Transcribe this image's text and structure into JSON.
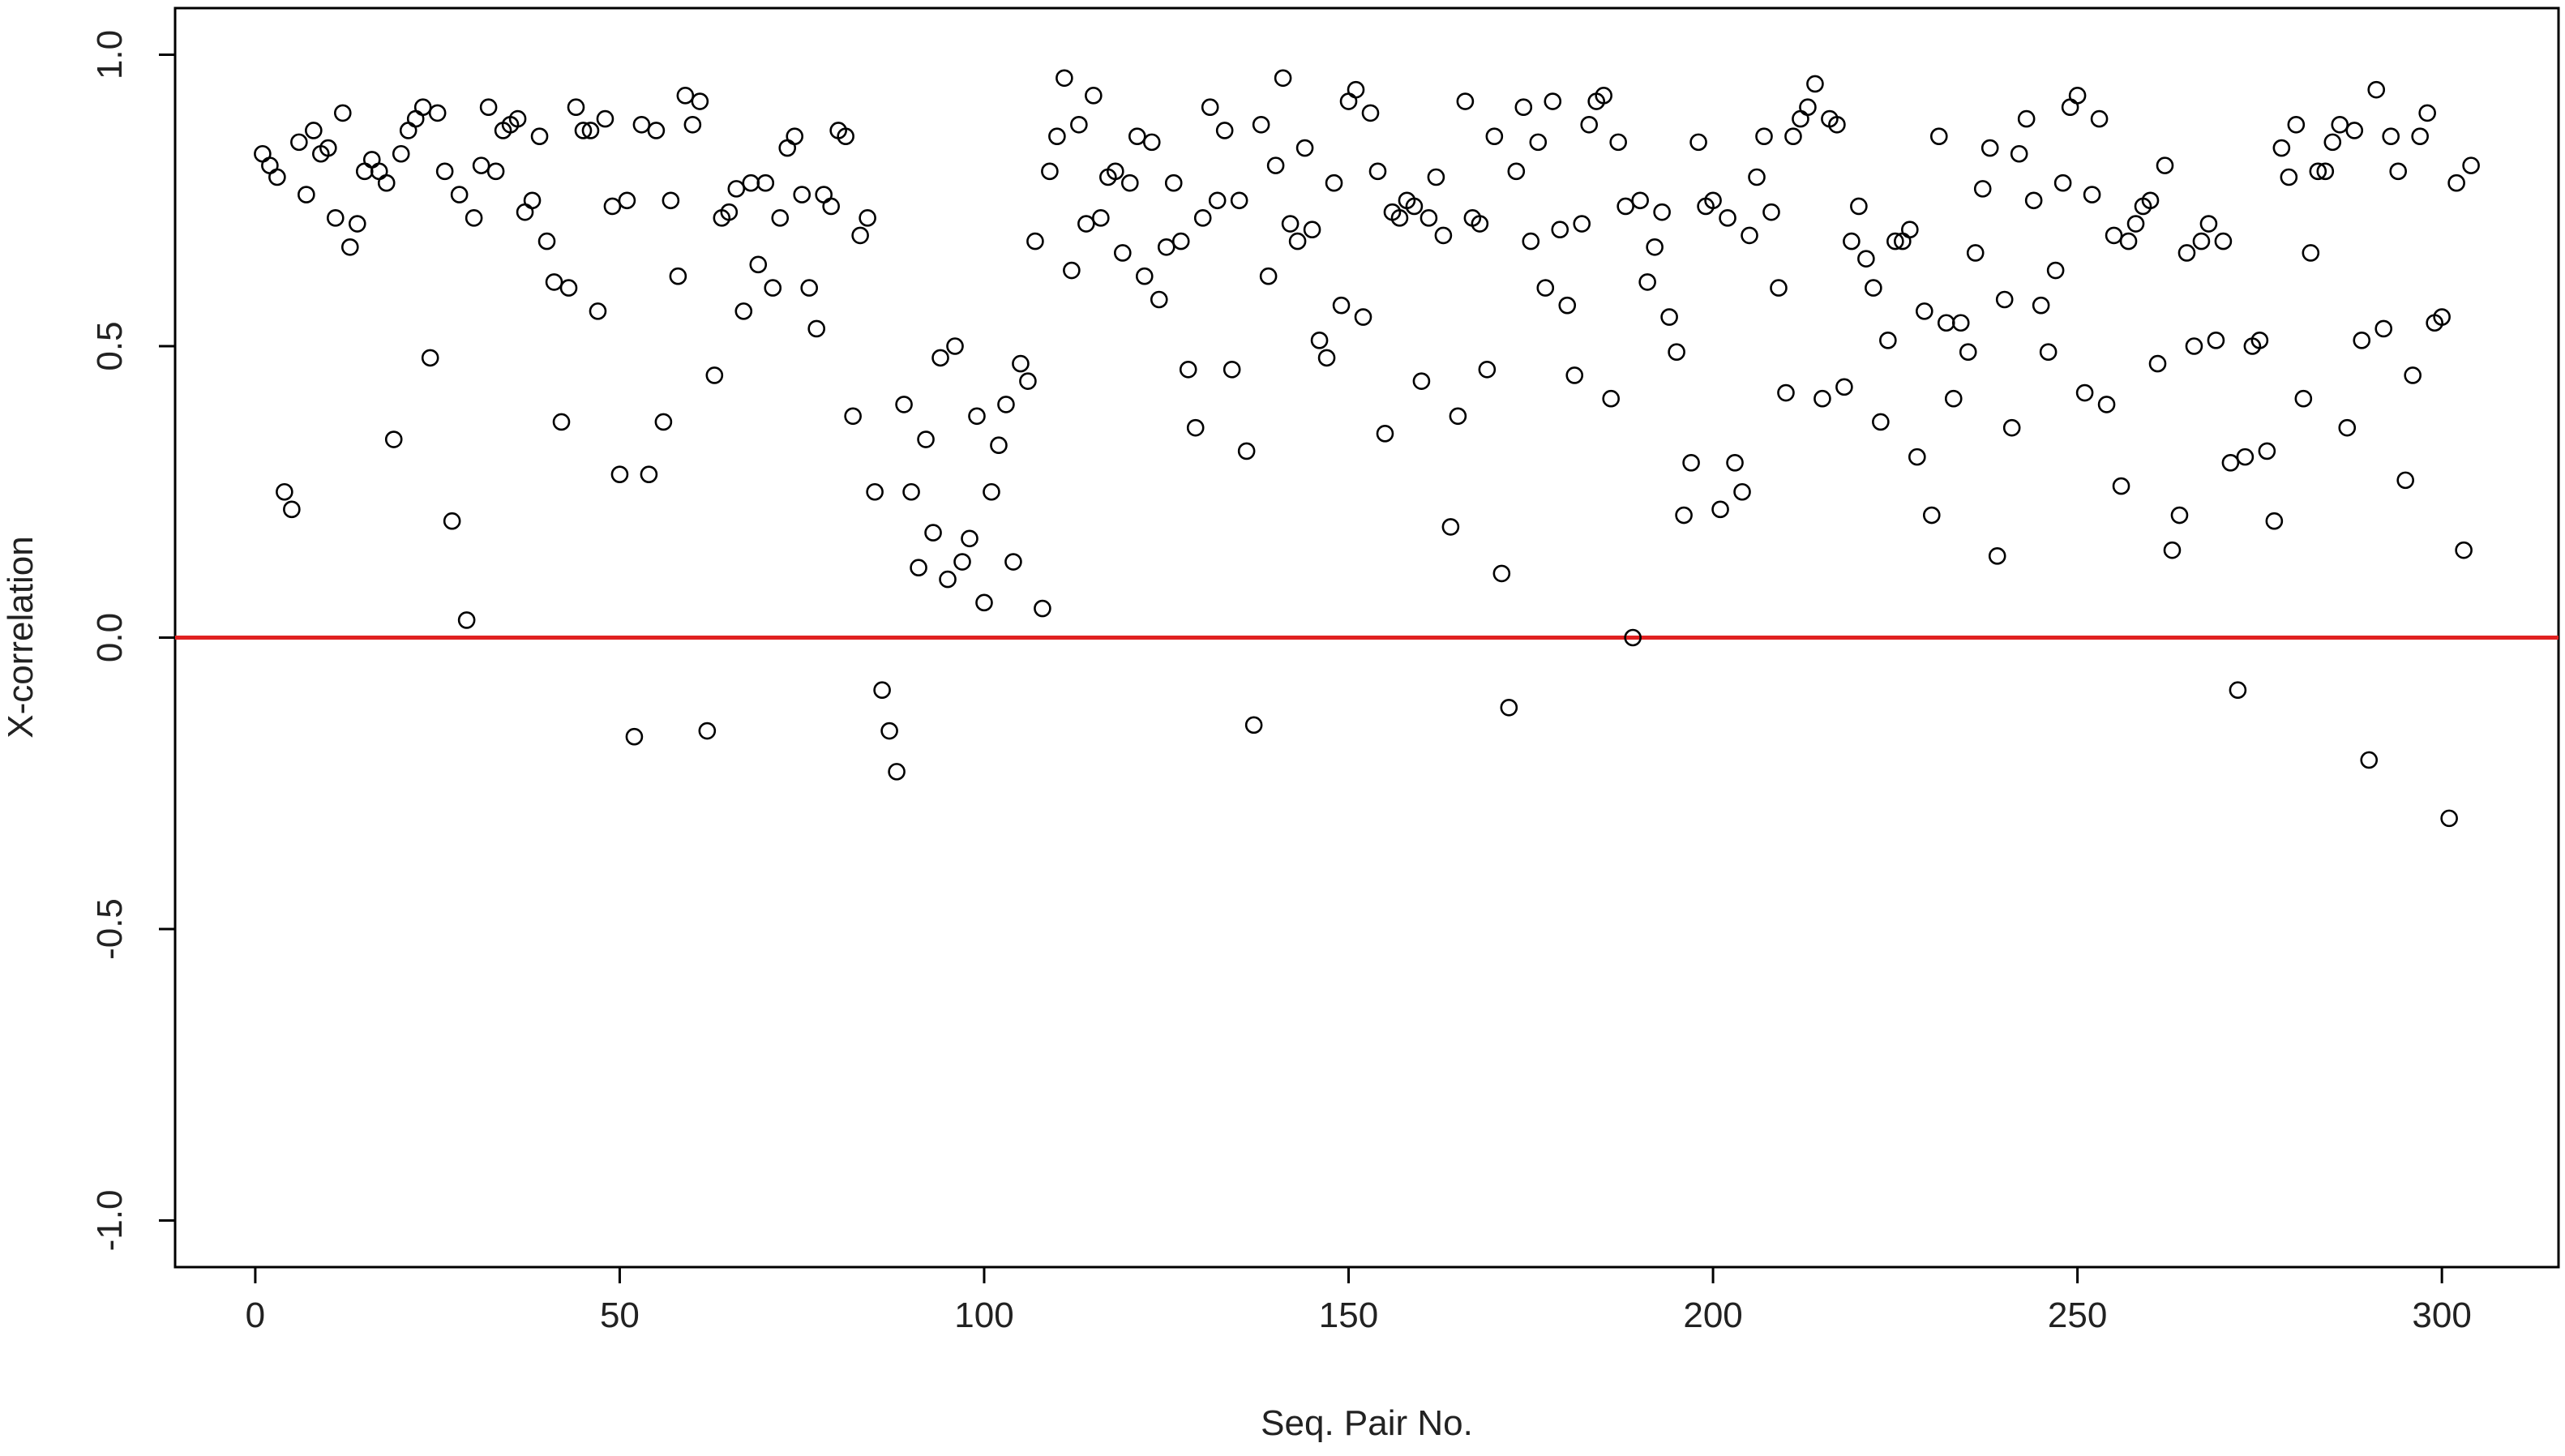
{
  "chart_data": {
    "type": "scatter",
    "title": "",
    "xlabel": "Seq. Pair No.",
    "ylabel": "X-correlation",
    "xlim": [
      -11,
      316
    ],
    "ylim": [
      -1.08,
      1.08
    ],
    "x_ticks": [
      0,
      50,
      100,
      150,
      200,
      250,
      300
    ],
    "x_tick_labels": [
      "0",
      "50",
      "100",
      "150",
      "200",
      "250",
      "300"
    ],
    "y_ticks": [
      -1.0,
      -0.5,
      0.0,
      0.5,
      1.0
    ],
    "y_tick_labels": [
      "-1.0",
      "-0.5",
      "0.0",
      "0.5",
      "1.0"
    ],
    "grid": false,
    "legend": "none",
    "reference_line": {
      "y": 0.0,
      "color": "#e02020"
    },
    "point_color": "#000000",
    "series": [
      {
        "x": [
          1,
          2,
          3,
          4,
          5,
          6,
          7,
          8,
          9,
          10,
          11,
          12,
          13,
          14,
          15,
          16,
          17,
          18,
          19,
          20,
          21,
          22,
          23,
          24,
          25,
          26,
          27,
          28,
          29,
          30,
          31,
          32,
          33,
          34,
          35,
          36,
          37,
          38,
          39,
          40,
          41,
          42,
          43,
          44,
          45,
          46,
          47,
          48,
          49,
          50,
          51,
          52,
          53,
          54,
          55,
          56,
          57,
          58,
          59,
          60,
          61,
          62,
          63,
          64,
          65,
          66,
          67,
          68,
          69,
          70,
          71,
          72,
          73,
          74,
          75,
          76,
          77,
          78,
          79,
          80,
          81,
          82,
          83,
          84,
          85,
          86,
          87,
          88,
          89,
          90,
          91,
          92,
          93,
          94,
          95,
          96,
          97,
          98,
          99,
          100,
          101,
          102,
          103,
          104,
          105,
          106,
          107,
          108,
          109,
          110,
          111,
          112,
          113,
          114,
          115,
          116,
          117,
          118,
          119,
          120,
          121,
          122,
          123,
          124,
          125,
          126,
          127,
          128,
          129,
          130,
          131,
          132,
          133,
          134,
          135,
          136,
          137,
          138,
          139,
          140,
          141,
          142,
          143,
          144,
          145,
          146,
          147,
          148,
          149,
          150,
          151,
          152,
          153,
          154,
          155,
          156,
          157,
          158,
          159,
          160,
          161,
          162,
          163,
          164,
          165,
          166,
          167,
          168,
          169,
          170,
          171,
          172,
          173,
          174,
          175,
          176,
          177,
          178,
          179,
          180,
          181,
          182,
          183,
          184,
          185,
          186,
          187,
          188,
          189,
          190,
          191,
          192,
          193,
          194,
          195,
          196,
          197,
          198,
          199,
          200,
          201,
          202,
          203,
          204,
          205,
          206,
          207,
          208,
          209,
          210,
          211,
          212,
          213,
          214,
          215,
          216,
          217,
          218,
          219,
          220,
          221,
          222,
          223,
          224,
          225,
          226,
          227,
          228,
          229,
          230,
          231,
          232,
          233,
          234,
          235,
          236,
          237,
          238,
          239,
          240,
          241,
          242,
          243,
          244,
          245,
          246,
          247,
          248,
          249,
          250,
          251,
          252,
          253,
          254,
          255,
          256,
          257,
          258,
          259,
          260,
          261,
          262,
          263,
          264,
          265,
          266,
          267,
          268,
          269,
          270,
          271,
          272,
          273,
          274,
          275,
          276,
          277,
          278,
          279,
          280,
          281,
          282,
          283,
          284,
          285,
          286,
          287,
          288,
          289,
          290,
          291,
          292,
          293,
          294,
          295,
          296,
          297,
          298,
          299,
          300,
          301,
          302,
          303,
          304
        ],
        "y": [
          0.83,
          0.81,
          0.79,
          0.25,
          0.22,
          0.85,
          0.76,
          0.87,
          0.83,
          0.84,
          0.72,
          0.9,
          0.67,
          0.71,
          0.8,
          0.82,
          0.8,
          0.78,
          0.34,
          0.83,
          0.87,
          0.89,
          0.91,
          0.48,
          0.9,
          0.8,
          0.2,
          0.76,
          0.03,
          0.72,
          0.81,
          0.91,
          0.8,
          0.87,
          0.88,
          0.89,
          0.73,
          0.75,
          0.86,
          0.68,
          0.61,
          0.37,
          0.6,
          0.91,
          0.87,
          0.87,
          0.56,
          0.89,
          0.74,
          0.28,
          0.75,
          -0.17,
          0.88,
          0.28,
          0.87,
          0.37,
          0.75,
          0.62,
          0.93,
          0.88,
          0.92,
          -0.16,
          0.45,
          0.72,
          0.73,
          0.77,
          0.56,
          0.78,
          0.64,
          0.78,
          0.6,
          0.72,
          0.84,
          0.86,
          0.76,
          0.6,
          0.53,
          0.76,
          0.74,
          0.87,
          0.86,
          0.38,
          0.69,
          0.72,
          0.25,
          -0.09,
          -0.16,
          -0.23,
          0.4,
          0.25,
          0.12,
          0.34,
          0.18,
          0.48,
          0.1,
          0.5,
          0.13,
          0.17,
          0.38,
          0.06,
          0.25,
          0.33,
          0.4,
          0.13,
          0.47,
          0.44,
          0.68,
          0.05,
          0.8,
          0.86,
          0.96,
          0.63,
          0.88,
          0.71,
          0.93,
          0.72,
          0.79,
          0.8,
          0.66,
          0.78,
          0.86,
          0.62,
          0.85,
          0.58,
          0.67,
          0.78,
          0.68,
          0.46,
          0.36,
          0.72,
          0.91,
          0.75,
          0.87,
          0.46,
          0.75,
          0.32,
          -0.15,
          0.88,
          0.62,
          0.81,
          0.96,
          0.71,
          0.68,
          0.84,
          0.7,
          0.51,
          0.48,
          0.78,
          0.57,
          0.92,
          0.94,
          0.55,
          0.9,
          0.8,
          0.35,
          0.73,
          0.72,
          0.75,
          0.74,
          0.44,
          0.72,
          0.79,
          0.69,
          0.19,
          0.38,
          0.92,
          0.72,
          0.71,
          0.46,
          0.86,
          0.11,
          -0.12,
          0.8,
          0.91,
          0.68,
          0.85,
          0.6,
          0.92,
          0.7,
          0.57,
          0.45,
          0.71,
          0.88,
          0.92,
          0.93,
          0.41,
          0.85,
          0.74,
          0.0,
          0.75,
          0.61,
          0.67,
          0.73,
          0.55,
          0.49,
          0.21,
          0.3,
          0.85,
          0.74,
          0.75,
          0.22,
          0.72,
          0.3,
          0.25,
          0.69,
          0.79,
          0.86,
          0.73,
          0.6,
          0.42,
          0.86,
          0.89,
          0.91,
          0.95,
          0.41,
          0.89,
          0.88,
          0.43,
          0.68,
          0.74,
          0.65,
          0.6,
          0.37,
          0.51,
          0.68,
          0.68,
          0.7,
          0.31,
          0.56,
          0.21,
          0.86,
          0.54,
          0.41,
          0.54,
          0.49,
          0.66,
          0.77,
          0.84,
          0.14,
          0.58,
          0.36,
          0.83,
          0.89,
          0.75,
          0.57,
          0.49,
          0.63,
          0.78,
          0.91,
          0.93,
          0.42,
          0.76,
          0.89,
          0.4,
          0.69,
          0.26,
          0.68,
          0.71,
          0.74,
          0.75,
          0.47,
          0.81,
          0.15,
          0.21,
          0.66,
          0.5,
          0.68,
          0.71,
          0.51,
          0.68,
          0.3,
          -0.09,
          0.31,
          0.5,
          0.51,
          0.32,
          0.2,
          0.84,
          0.79,
          0.88,
          0.41,
          0.66,
          0.8,
          0.8,
          0.85,
          0.88,
          0.36,
          0.87,
          0.51,
          -0.21,
          0.94,
          0.53,
          0.86,
          0.8,
          0.27,
          0.45,
          0.86,
          0.9,
          0.54,
          0.55,
          -0.31,
          0.78,
          0.15,
          0.81
        ]
      }
    ]
  }
}
